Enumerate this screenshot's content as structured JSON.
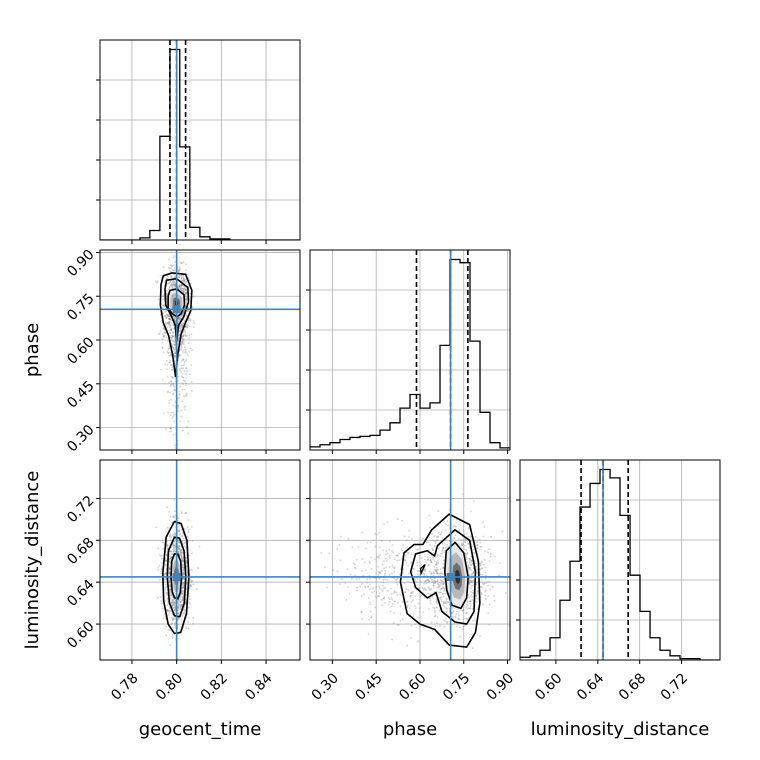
{
  "chart_data": {
    "type": "corner",
    "parameters": [
      "geocent_time",
      "phase",
      "luminosity_distance"
    ],
    "truths": [
      0.8,
      0.705,
      0.645
    ],
    "grid": true,
    "colors": {
      "truth": "#4682b4",
      "contour": "#000000",
      "hist": "#000000",
      "grid": "#b0b0b0",
      "points": "#808080"
    },
    "axes": {
      "geocent_time": {
        "label": "geocent_time",
        "range": [
          0.7657,
          0.8552
        ],
        "ticks": [
          0.78,
          0.8,
          0.82,
          0.84
        ],
        "tick_labels": [
          "0.78",
          "0.80",
          "0.82",
          "0.84"
        ]
      },
      "phase": {
        "label": "phase",
        "range": [
          0.2233,
          0.9083
        ],
        "ticks": [
          0.3,
          0.45,
          0.6,
          0.75,
          0.9
        ],
        "tick_labels": [
          "0.30",
          "0.45",
          "0.60",
          "0.75",
          "0.90"
        ]
      },
      "luminosity_distance": {
        "label": "luminosity_distance",
        "range": [
          0.5657,
          0.7567
        ],
        "ticks": [
          0.6,
          0.64,
          0.68,
          0.72
        ],
        "tick_labels": [
          "0.60",
          "0.64",
          "0.68",
          "0.72"
        ]
      }
    },
    "histograms": [
      {
        "param": "geocent_time",
        "quantiles": [
          0.797,
          0.8,
          0.804
        ],
        "bin_edges": [
          0.7657,
          0.7701,
          0.7746,
          0.7791,
          0.7836,
          0.788,
          0.7925,
          0.797,
          0.8014,
          0.8059,
          0.8104,
          0.8149,
          0.8193,
          0.8238,
          0.8283,
          0.8328,
          0.8372,
          0.8417,
          0.8462,
          0.8507,
          0.8552
        ],
        "counts": [
          0,
          0,
          0,
          0,
          2,
          9,
          98,
          180,
          88,
          12,
          3,
          1,
          1,
          0,
          0,
          0,
          0,
          0,
          0,
          0
        ]
      },
      {
        "param": "phase",
        "quantiles": [
          0.588,
          0.705,
          0.764
        ],
        "bin_edges": [
          0.2233,
          0.2576,
          0.2918,
          0.3261,
          0.3603,
          0.3946,
          0.4288,
          0.4631,
          0.4973,
          0.5316,
          0.5658,
          0.6001,
          0.6343,
          0.6686,
          0.7028,
          0.7371,
          0.7713,
          0.8056,
          0.8398,
          0.8741,
          0.9083
        ],
        "counts": [
          3,
          5,
          7,
          10,
          12,
          13,
          14,
          19,
          26,
          40,
          53,
          40,
          45,
          100,
          182,
          179,
          104,
          36,
          7,
          2
        ]
      },
      {
        "param": "luminosity_distance",
        "quantiles": [
          0.624,
          0.645,
          0.669
        ],
        "bin_edges": [
          0.5657,
          0.5753,
          0.5848,
          0.5944,
          0.6039,
          0.6135,
          0.623,
          0.6326,
          0.6421,
          0.6517,
          0.6612,
          0.6708,
          0.6803,
          0.6899,
          0.6994,
          0.709,
          0.7185,
          0.7281,
          0.7376,
          0.7472,
          0.7567
        ],
        "counts": [
          2,
          3,
          7,
          16,
          43,
          71,
          110,
          127,
          137,
          131,
          104,
          61,
          35,
          16,
          7,
          3,
          1,
          1,
          0,
          0
        ]
      }
    ],
    "scatter_2d": [
      {
        "x": "geocent_time",
        "y": "phase",
        "n_points": 1400,
        "mode": {
          "x": 0.8,
          "y": 0.725
        },
        "contours": [
          {
            "level": 1,
            "x": [
              0.797,
              0.8,
              0.8033,
              0.8035,
              0.802,
              0.8002,
              0.798,
              0.7962,
              0.7962,
              0.797
            ],
            "y": [
              0.77,
              0.775,
              0.755,
              0.72,
              0.69,
              0.68,
              0.69,
              0.71,
              0.75,
              0.77
            ]
          },
          {
            "level": 2,
            "x": [
              0.7955,
              0.8,
              0.805,
              0.8053,
              0.8032,
              0.8008,
              0.8,
              0.7994,
              0.7978,
              0.7951,
              0.7948,
              0.7955
            ],
            "y": [
              0.805,
              0.81,
              0.78,
              0.73,
              0.68,
              0.65,
              0.59,
              0.65,
              0.68,
              0.72,
              0.775,
              0.805
            ]
          },
          {
            "level": 3,
            "x": [
              0.794,
              0.798,
              0.804,
              0.8068,
              0.8063,
              0.804,
              0.802,
              0.8005,
              0.7995,
              0.7982,
              0.7964,
              0.794,
              0.7927,
              0.793,
              0.794
            ],
            "y": [
              0.82,
              0.83,
              0.825,
              0.77,
              0.7,
              0.66,
              0.62,
              0.55,
              0.475,
              0.55,
              0.615,
              0.66,
              0.72,
              0.79,
              0.82
            ]
          }
        ]
      },
      {
        "x": "geocent_time",
        "y": "luminosity_distance",
        "n_points": 1400,
        "mode": {
          "x": 0.8,
          "y": 0.646
        },
        "contours": [
          {
            "level": 1,
            "x": [
              0.799,
              0.8005,
              0.8018,
              0.8022,
              0.8016,
              0.8005,
              0.7991,
              0.798,
              0.7975,
              0.7978,
              0.799
            ],
            "y": [
              0.667,
              0.667,
              0.66,
              0.645,
              0.63,
              0.624,
              0.625,
              0.631,
              0.645,
              0.66,
              0.667
            ]
          },
          {
            "level": 2,
            "x": [
              0.799,
              0.8013,
              0.8033,
              0.8041,
              0.8034,
              0.8014,
              0.799,
              0.7968,
              0.7958,
              0.7963,
              0.799
            ],
            "y": [
              0.683,
              0.682,
              0.67,
              0.645,
              0.62,
              0.607,
              0.608,
              0.62,
              0.645,
              0.67,
              0.683
            ]
          },
          {
            "level": 3,
            "x": [
              0.799,
              0.802,
              0.8046,
              0.8055,
              0.8044,
              0.8018,
              0.799,
              0.7962,
              0.7942,
              0.7938,
              0.7953,
              0.799
            ],
            "y": [
              0.698,
              0.696,
              0.68,
              0.645,
              0.61,
              0.592,
              0.591,
              0.6,
              0.622,
              0.648,
              0.683,
              0.698
            ]
          }
        ]
      },
      {
        "x": "phase",
        "y": "luminosity_distance",
        "n_points": 1400,
        "mode": {
          "x": 0.73,
          "y": 0.645
        },
        "contours": [
          {
            "level": 1,
            "x": [
              0.69,
              0.72,
              0.75,
              0.765,
              0.76,
              0.74,
              0.71,
              0.692,
              0.685,
              0.69
            ],
            "y": [
              0.67,
              0.678,
              0.668,
              0.645,
              0.625,
              0.615,
              0.618,
              0.632,
              0.65,
              0.67
            ]
          },
          {
            "level": 2,
            "x": [
              0.66,
              0.72,
              0.77,
              0.79,
              0.785,
              0.76,
              0.72,
              0.675,
              0.655,
              0.625,
              0.585,
              0.568,
              0.585,
              0.625,
              0.65,
              0.66
            ],
            "y": [
              0.675,
              0.69,
              0.68,
              0.65,
              0.612,
              0.6,
              0.602,
              0.612,
              0.63,
              0.625,
              0.635,
              0.65,
              0.667,
              0.67,
              0.665,
              0.675
            ]
          },
          {
            "level": 3,
            "x": [
              0.64,
              0.7,
              0.77,
              0.8,
              0.805,
              0.79,
              0.76,
              0.7,
              0.65,
              0.6,
              0.556,
              0.533,
              0.545,
              0.58,
              0.61,
              0.64
            ],
            "y": [
              0.69,
              0.705,
              0.695,
              0.66,
              0.62,
              0.592,
              0.578,
              0.58,
              0.595,
              0.6,
              0.61,
              0.64,
              0.668,
              0.676,
              0.676,
              0.69
            ]
          }
        ]
      }
    ],
    "blob_points": [
      {
        "panel": 0,
        "x": 0.602,
        "y": 0.6531
      },
      {
        "panel": 1,
        "x": 0.6174,
        "y": 0.6568
      },
      {
        "panel": 2,
        "x": 0.6041,
        "y": 0.6485
      }
    ]
  }
}
